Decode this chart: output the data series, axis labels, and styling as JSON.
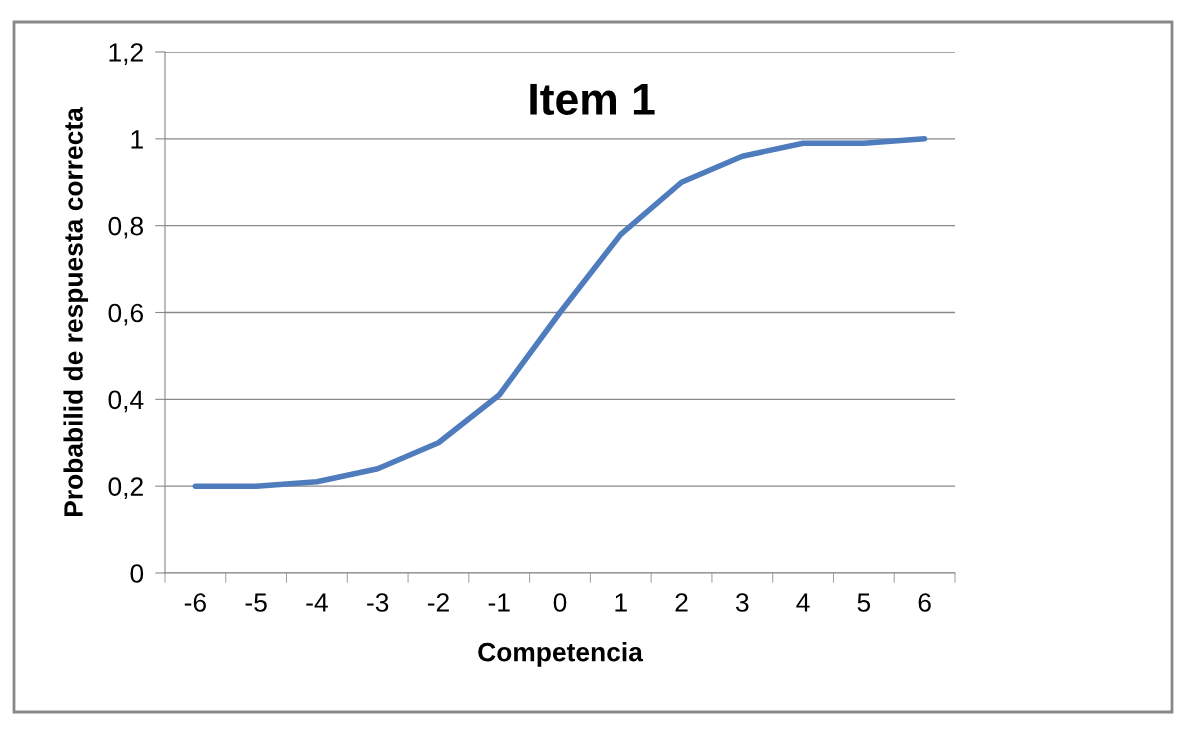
{
  "chart_data": {
    "type": "line",
    "title": "Item 1",
    "xlabel": "Competencia",
    "ylabel": "Probabilid de respuesta correcta",
    "categories": [
      "-6",
      "-5",
      "-4",
      "-3",
      "-2",
      "-1",
      "0",
      "1",
      "2",
      "3",
      "4",
      "5",
      "6"
    ],
    "series": [
      {
        "color": "#4f7cbd",
        "values": [
          0.2,
          0.2,
          0.21,
          0.24,
          0.3,
          0.41,
          0.6,
          0.78,
          0.9,
          0.96,
          0.99,
          0.99,
          1.0
        ]
      }
    ],
    "ylim": [
      0,
      1.2
    ],
    "yticks": [
      0,
      {
        "value": 0.2,
        "label": "0,2"
      },
      {
        "value": 0.4,
        "label": "0,4"
      },
      {
        "value": 0.6,
        "label": "0,6"
      },
      {
        "value": 0.8,
        "label": "0,8"
      },
      1,
      {
        "value": 1.2,
        "label": "1,2"
      }
    ],
    "grid": "y",
    "marker": "none",
    "line_style": "solid"
  }
}
